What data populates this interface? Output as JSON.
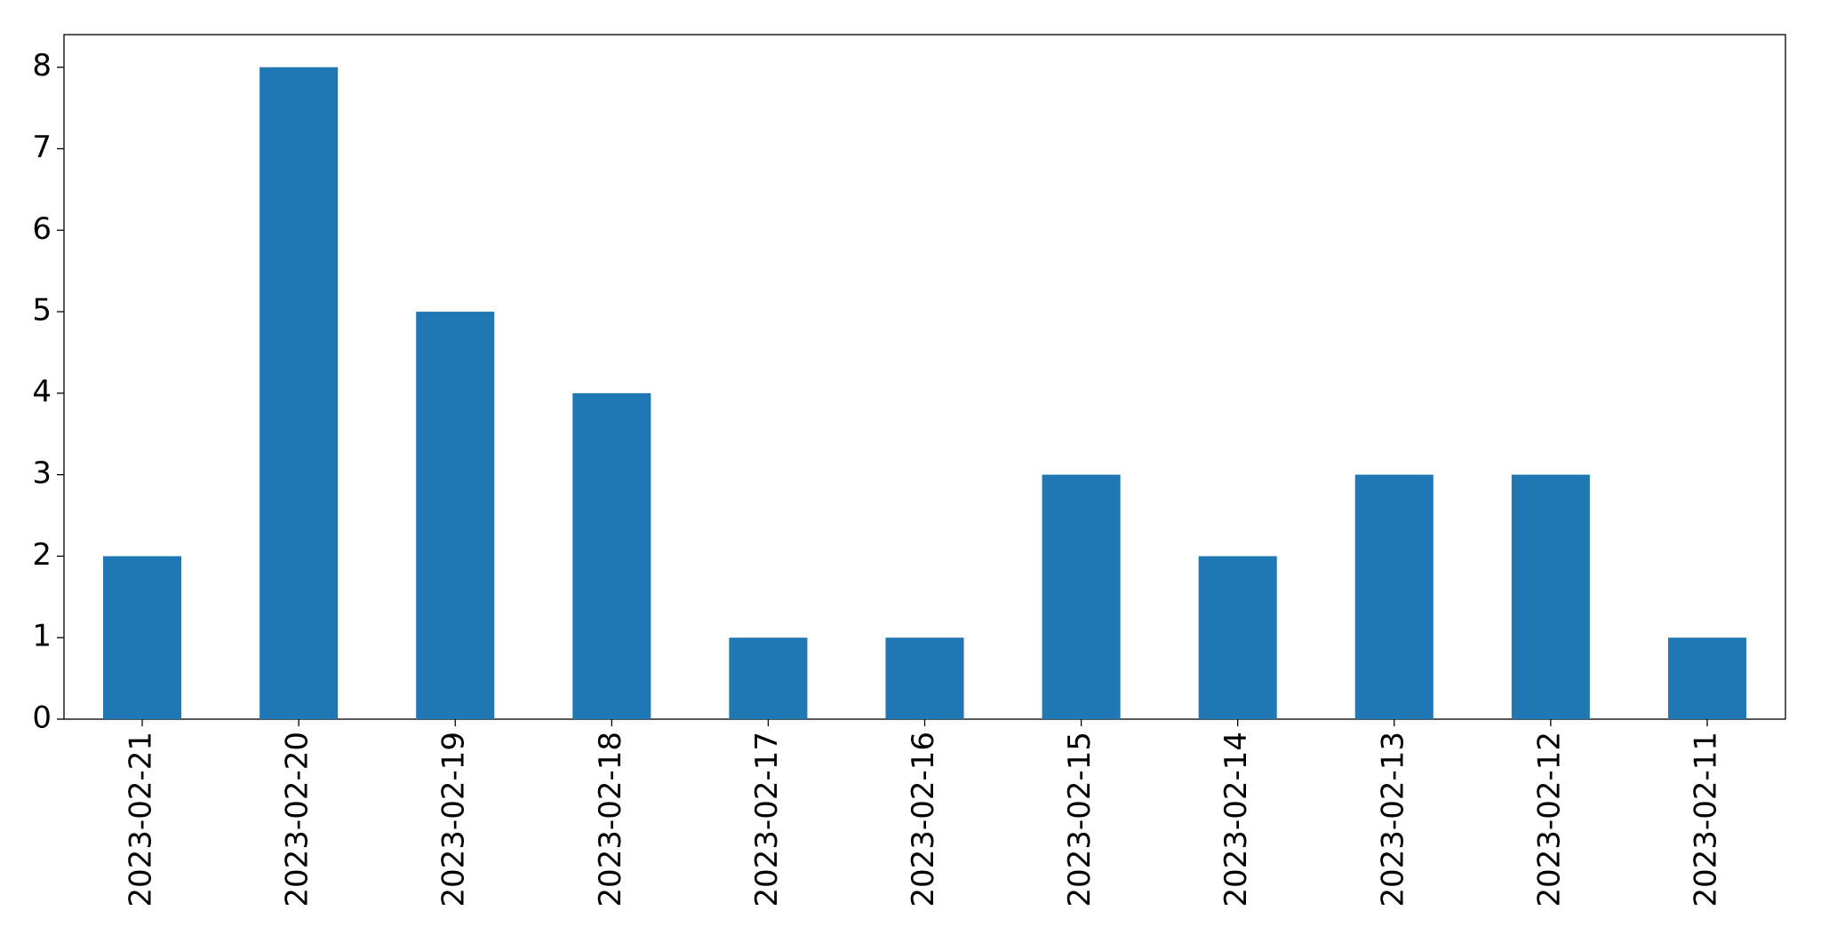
{
  "chart_data": {
    "type": "bar",
    "categories": [
      "2023-02-21",
      "2023-02-20",
      "2023-02-19",
      "2023-02-18",
      "2023-02-17",
      "2023-02-16",
      "2023-02-15",
      "2023-02-14",
      "2023-02-13",
      "2023-02-12",
      "2023-02-11"
    ],
    "values": [
      2,
      8,
      5,
      4,
      1,
      1,
      3,
      2,
      3,
      3,
      1
    ],
    "color": "#1f77b4",
    "ylim": [
      0,
      8.4
    ],
    "yticks": [
      0,
      1,
      2,
      3,
      4,
      5,
      6,
      7,
      8
    ],
    "grid": false
  }
}
